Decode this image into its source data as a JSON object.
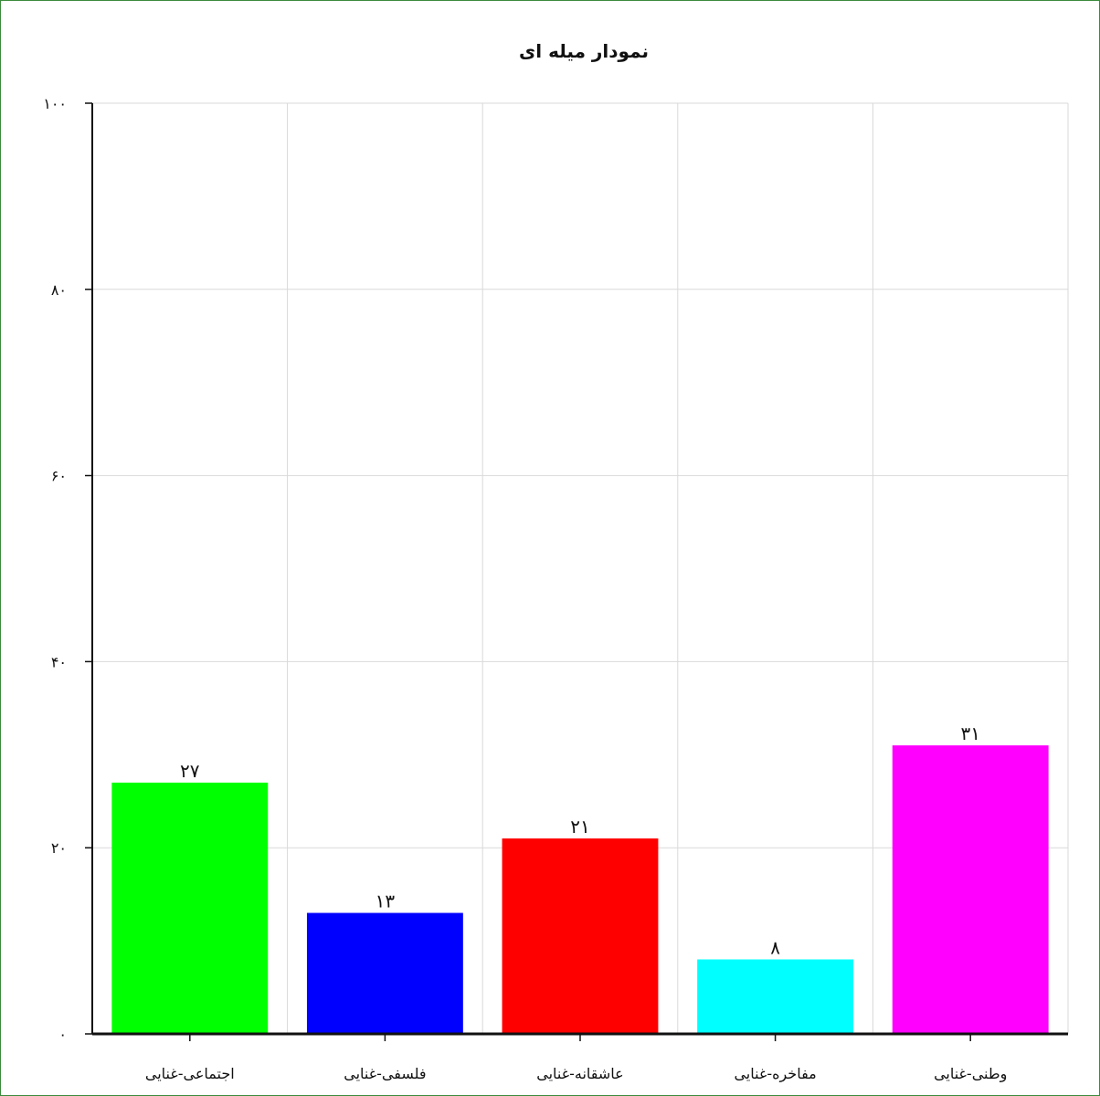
{
  "chart_data": {
    "type": "bar",
    "title": "نمودار میله ای",
    "xlabel": "",
    "ylabel": "",
    "categories": [
      "اجتماعی-غنایی",
      "فلسفی-غنایی",
      "عاشقانه-غنایی",
      "مفاخره-غنایی",
      "وطنی-غنایی"
    ],
    "values": [
      27,
      13,
      21,
      8,
      31
    ],
    "value_labels": [
      "۲۷",
      "۱۳",
      "۲۱",
      "۸",
      "۳۱"
    ],
    "colors": [
      "#00ff00",
      "#0000ff",
      "#ff0000",
      "#00ffff",
      "#ff00ff"
    ],
    "ylim": [
      0,
      100
    ],
    "yticks": [
      0,
      20,
      40,
      60,
      80,
      100
    ],
    "ytick_labels": [
      "۰",
      "۲۰",
      "۴۰",
      "۶۰",
      "۸۰",
      "۱۰۰"
    ],
    "grid": true,
    "legend": "none"
  }
}
